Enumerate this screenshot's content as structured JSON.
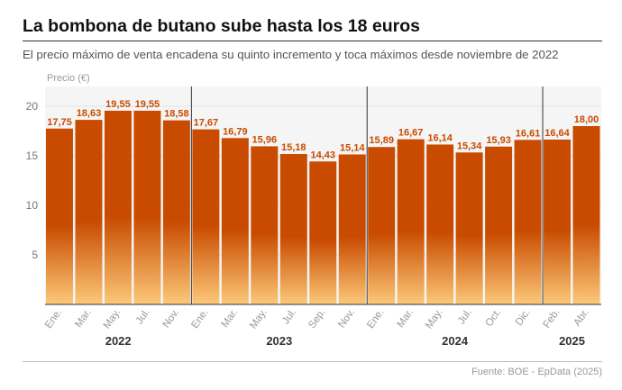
{
  "header": {
    "title": "La bombona de butano sube hasta los 18 euros",
    "subtitle": "El precio máximo de venta encadena su quinto incremento y toca máximos desde noviembre de 2022"
  },
  "footer": {
    "source": "Fuente: BOE - EpData (2025)"
  },
  "colors": {
    "bar_top": "#c84b00",
    "bar_bottom": "#fcc879",
    "label": "#c84b00",
    "plot_bg": "#f5f5f5"
  },
  "chart_data": {
    "type": "bar",
    "ylabel": "Precio (€)",
    "ylim": [
      0,
      22
    ],
    "yticks": [
      5,
      10,
      15,
      20
    ],
    "categories": [
      "Ene.",
      "Mar.",
      "May.",
      "Jul.",
      "Nov.",
      "Ene.",
      "Mar.",
      "May.",
      "Jul.",
      "Sep.",
      "Nov.",
      "Ene.",
      "Mar.",
      "May.",
      "Jul.",
      "Oct.",
      "Dic.",
      "Feb.",
      "Abr."
    ],
    "values": [
      17.75,
      18.63,
      19.55,
      19.55,
      18.58,
      17.67,
      16.79,
      15.96,
      15.18,
      14.43,
      15.14,
      15.89,
      16.67,
      16.14,
      15.34,
      15.93,
      16.61,
      16.64,
      18.0
    ],
    "value_labels": [
      "17,75",
      "18,63",
      "19,55",
      "19,55",
      "18,58",
      "17,67",
      "16,79",
      "15,96",
      "15,18",
      "14,43",
      "15,14",
      "15,89",
      "16,67",
      "16,14",
      "15,34",
      "15,93",
      "16,61",
      "16,64",
      "18,00"
    ],
    "years": [
      {
        "label": "2022",
        "start": 0,
        "count": 5
      },
      {
        "label": "2023",
        "start": 5,
        "count": 6
      },
      {
        "label": "2024",
        "start": 11,
        "count": 6
      },
      {
        "label": "2025",
        "start": 17,
        "count": 2
      }
    ],
    "grid": true,
    "legend": "none"
  }
}
